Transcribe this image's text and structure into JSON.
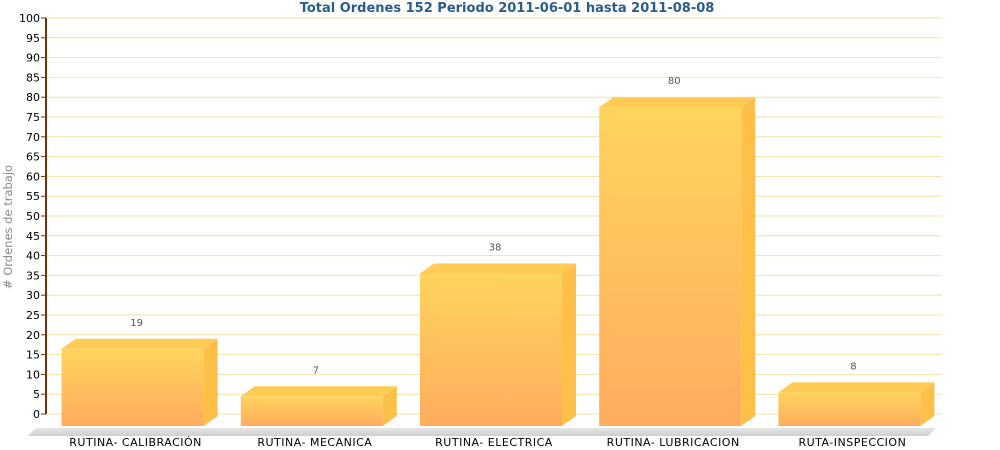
{
  "chart_data": {
    "type": "bar",
    "title": "Total Ordenes 152 Periodo 2011-06-01 hasta 2011-08-08",
    "xlabel": "",
    "ylabel": "# Ordenes de trabajo",
    "categories": [
      "RUTINA- CALIBRACIÓN",
      "RUTINA- MECANICA",
      "RUTINA- ELECTRICA",
      "RUTINA- LUBRICACION",
      "RUTA-INSPECCION"
    ],
    "values": [
      19,
      7,
      38,
      80,
      8
    ],
    "ylim": [
      0,
      100
    ],
    "ytick_step": 5,
    "grid": true,
    "legend": "none",
    "colors": {
      "bar_top": "#ffd45e",
      "bar_bottom": "#ffac5e",
      "bar_cap": "#ffcb55",
      "bar_side": "#ffc04a",
      "grid": "#f4e2a6",
      "axis": "#7a2e0e"
    }
  }
}
